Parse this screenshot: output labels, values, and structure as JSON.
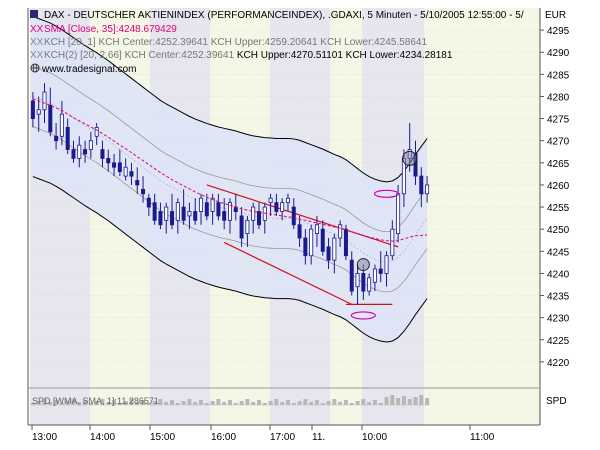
{
  "legend": {
    "title_line": "DAX  - DEUTSCHER AKTIENINDEX (PERFORMANCEINDEX), .GDAXI, 5 Minuten - 5/10/2005 12:55:00 - 5/",
    "currency": "EUR",
    "sma_line": "SMA [Close, 35]:4248.679429",
    "kch1_line": "KCH [20, 1] KCH Center:4252.39641 KCH Upper:4259.20641 KCH Lower:4245.58641",
    "kch2_prefix": "KCH(2) [20, 2.66] KCH Center:4252.39641 ",
    "kch2_suffix": "KCH Upper:4270.51101 KCH Lower:4234.28181",
    "website": "www.tradesignal.com",
    "xx_marker": "XX"
  },
  "panel2": {
    "label": "SPD [WMA, SMA, 1]:11.286571",
    "axis_label": "SPD"
  },
  "colors": {
    "sma": "#e0007a",
    "candle": "#1a1a8c",
    "band_fill": "#dde3f7",
    "band_line": "#000000",
    "inner_band": "#999999",
    "trendline": "#d0101a",
    "highlight": "#d000b0",
    "shade_dark": "#e6e6ee",
    "shade_light": "#f4f6e6"
  },
  "chart_data": {
    "type": "line",
    "title": "DAX  - DEUTSCHER AKTIENINDEX (PERFORMANCEINDEX), .GDAXI, 5 Minuten - 5/10/2005 12:55:00 - 5/",
    "interval": "5 Minuten",
    "ylim": [
      4215,
      4300
    ],
    "ytick_step": 5,
    "y_axis_label": "EUR",
    "x_ticks": [
      "13:00",
      "14:00",
      "15:00",
      "16:00",
      "17:00",
      "11.",
      "10:00",
      "11:00"
    ],
    "series": [
      {
        "name": "DAX",
        "kind": "ohlc",
        "ohlc": [
          [
            4279,
            4281,
            4273,
            4275
          ],
          [
            4276,
            4280,
            4272,
            4277
          ],
          [
            4277,
            4283,
            4274,
            4281
          ],
          [
            4278,
            4282,
            4271,
            4272
          ],
          [
            4271,
            4274,
            4268,
            4270
          ],
          [
            4271,
            4279,
            4269,
            4276
          ],
          [
            4273,
            4275,
            4267,
            4268
          ],
          [
            4268,
            4270,
            4265,
            4266
          ],
          [
            4266,
            4271,
            4264,
            4269
          ],
          [
            4268,
            4270,
            4265,
            4267
          ],
          [
            4268,
            4272,
            4266,
            4270
          ],
          [
            4271,
            4274,
            4269,
            4273
          ],
          [
            4268,
            4270,
            4264,
            4266
          ],
          [
            4266,
            4268,
            4263,
            4265
          ],
          [
            4265,
            4267,
            4262,
            4264
          ],
          [
            4265,
            4268,
            4262,
            4263
          ],
          [
            4262,
            4266,
            4261,
            4264
          ],
          [
            4263,
            4265,
            4260,
            4262
          ],
          [
            4261,
            4264,
            4258,
            4260
          ],
          [
            4259,
            4262,
            4256,
            4258
          ],
          [
            4257,
            4258,
            4253,
            4255
          ],
          [
            4256,
            4258,
            4251,
            4252
          ],
          [
            4254,
            4256,
            4250,
            4251
          ],
          [
            4252,
            4256,
            4249,
            4255
          ],
          [
            4254,
            4258,
            4250,
            4251
          ],
          [
            4252,
            4257,
            4249,
            4256
          ],
          [
            4255,
            4259,
            4251,
            4252
          ],
          [
            4253,
            4256,
            4250,
            4254
          ],
          [
            4254,
            4257,
            4251,
            4252
          ],
          [
            4254,
            4258,
            4251,
            4257
          ],
          [
            4256,
            4258,
            4252,
            4253
          ],
          [
            4254,
            4258,
            4251,
            4257
          ],
          [
            4256,
            4258,
            4252,
            4253
          ],
          [
            4254,
            4257,
            4250,
            4252
          ],
          [
            4252,
            4257,
            4249,
            4256
          ],
          [
            4255,
            4258,
            4252,
            4254
          ],
          [
            4253,
            4255,
            4246,
            4248
          ],
          [
            4249,
            4253,
            4246,
            4252
          ],
          [
            4252,
            4256,
            4249,
            4255
          ],
          [
            4254,
            4256,
            4250,
            4251
          ],
          [
            4252,
            4256,
            4249,
            4255
          ],
          [
            4256,
            4258,
            4253,
            4257
          ],
          [
            4256,
            4258,
            4253,
            4254
          ],
          [
            4254,
            4257,
            4252,
            4256
          ],
          [
            4256,
            4258,
            4254,
            4257
          ],
          [
            4255,
            4257,
            4250,
            4251
          ],
          [
            4251,
            4253,
            4246,
            4248
          ],
          [
            4248,
            4250,
            4242,
            4244
          ],
          [
            4244,
            4251,
            4242,
            4250
          ],
          [
            4249,
            4253,
            4246,
            4251
          ],
          [
            4250,
            4252,
            4244,
            4245
          ],
          [
            4246,
            4248,
            4241,
            4243
          ],
          [
            4243,
            4249,
            4240,
            4248
          ],
          [
            4248,
            4252,
            4246,
            4251
          ],
          [
            4250,
            4251,
            4243,
            4244
          ],
          [
            4243,
            4245,
            4235,
            4236
          ],
          [
            4237,
            4242,
            4233,
            4240
          ],
          [
            4240,
            4242,
            4234,
            4236
          ],
          [
            4236,
            4240,
            4235,
            4239
          ],
          [
            4238,
            4242,
            4236,
            4241
          ],
          [
            4241,
            4245,
            4238,
            4240
          ],
          [
            4240,
            4245,
            4237,
            4244
          ],
          [
            4244,
            4252,
            4243,
            4250
          ],
          [
            4249,
            4260,
            4247,
            4258
          ],
          [
            4258,
            4268,
            4255,
            4266
          ],
          [
            4266,
            4274,
            4263,
            4268
          ],
          [
            4267,
            4270,
            4260,
            4262
          ],
          [
            4262,
            4264,
            4255,
            4258
          ],
          [
            4258,
            4262,
            4256,
            4260
          ]
        ]
      },
      {
        "name": "SMA [Close, 35]",
        "values": [
          4279.5,
          4279,
          4278.5,
          4278,
          4277.4,
          4276.8,
          4276,
          4275.2,
          4274.5,
          4273.8,
          4273.1,
          4272.4,
          4271.6,
          4270.8,
          4269.9,
          4269,
          4268.2,
          4267.3,
          4266.4,
          4265.5,
          4264.6,
          4263.7,
          4262.8,
          4262,
          4261.2,
          4260.5,
          4259.8,
          4259.1,
          4258.4,
          4257.8,
          4257.2,
          4256.7,
          4256.2,
          4255.8,
          4255.4,
          4255,
          4254.6,
          4254.3,
          4254,
          4253.8,
          4253.6,
          4253.4,
          4253.2,
          4253,
          4252.8,
          4252.6,
          4252.3,
          4252,
          4251.7,
          4251.4,
          4251.1,
          4250.8,
          4250.5,
          4250.2,
          4249.8,
          4249.4,
          4249,
          4248.6,
          4248.2,
          4247.9,
          4247.6,
          4247.4,
          4247.3,
          4247.4,
          4247.8,
          4248.2,
          4248.5,
          4248.6,
          4248.7
        ]
      },
      {
        "name": "KCH [20, 1]",
        "center": [
          4280,
          4279.5,
          4279,
          4278.5,
          4277.8,
          4277,
          4276.1,
          4275.2,
          4274.3,
          4273.4,
          4272.6,
          4271.8,
          4270.9,
          4270,
          4269,
          4268,
          4267,
          4266,
          4265,
          4264,
          4263,
          4262,
          4261,
          4260.2,
          4259.5,
          4258.8,
          4258.1,
          4257.4,
          4256.8,
          4256.3,
          4255.8,
          4255.4,
          4255,
          4254.7,
          4254.4,
          4254.1,
          4253.7,
          4253.3,
          4253,
          4252.8,
          4252.6,
          4252.5,
          4252.4,
          4252.4,
          4252.4,
          4252.3,
          4252,
          4251.5,
          4251,
          4250.5,
          4250,
          4249.4,
          4248.8,
          4248.3,
          4247.6,
          4246.6,
          4245.6,
          4244.6,
          4243.8,
          4243.2,
          4242.8,
          4242.6,
          4242.8,
          4243.6,
          4245,
          4246.8,
          4248.8,
          4250.6,
          4252.4
        ],
        "band_width": 6.8
      },
      {
        "name": "KCH(2) [20, 2.66]",
        "band_width": 18.1
      }
    ],
    "annotations": {
      "x_labels_rendered": [
        "13:00",
        "14:00",
        "15:00",
        "16:00",
        "17:00",
        "11.",
        "10:00",
        "11:00"
      ]
    }
  }
}
